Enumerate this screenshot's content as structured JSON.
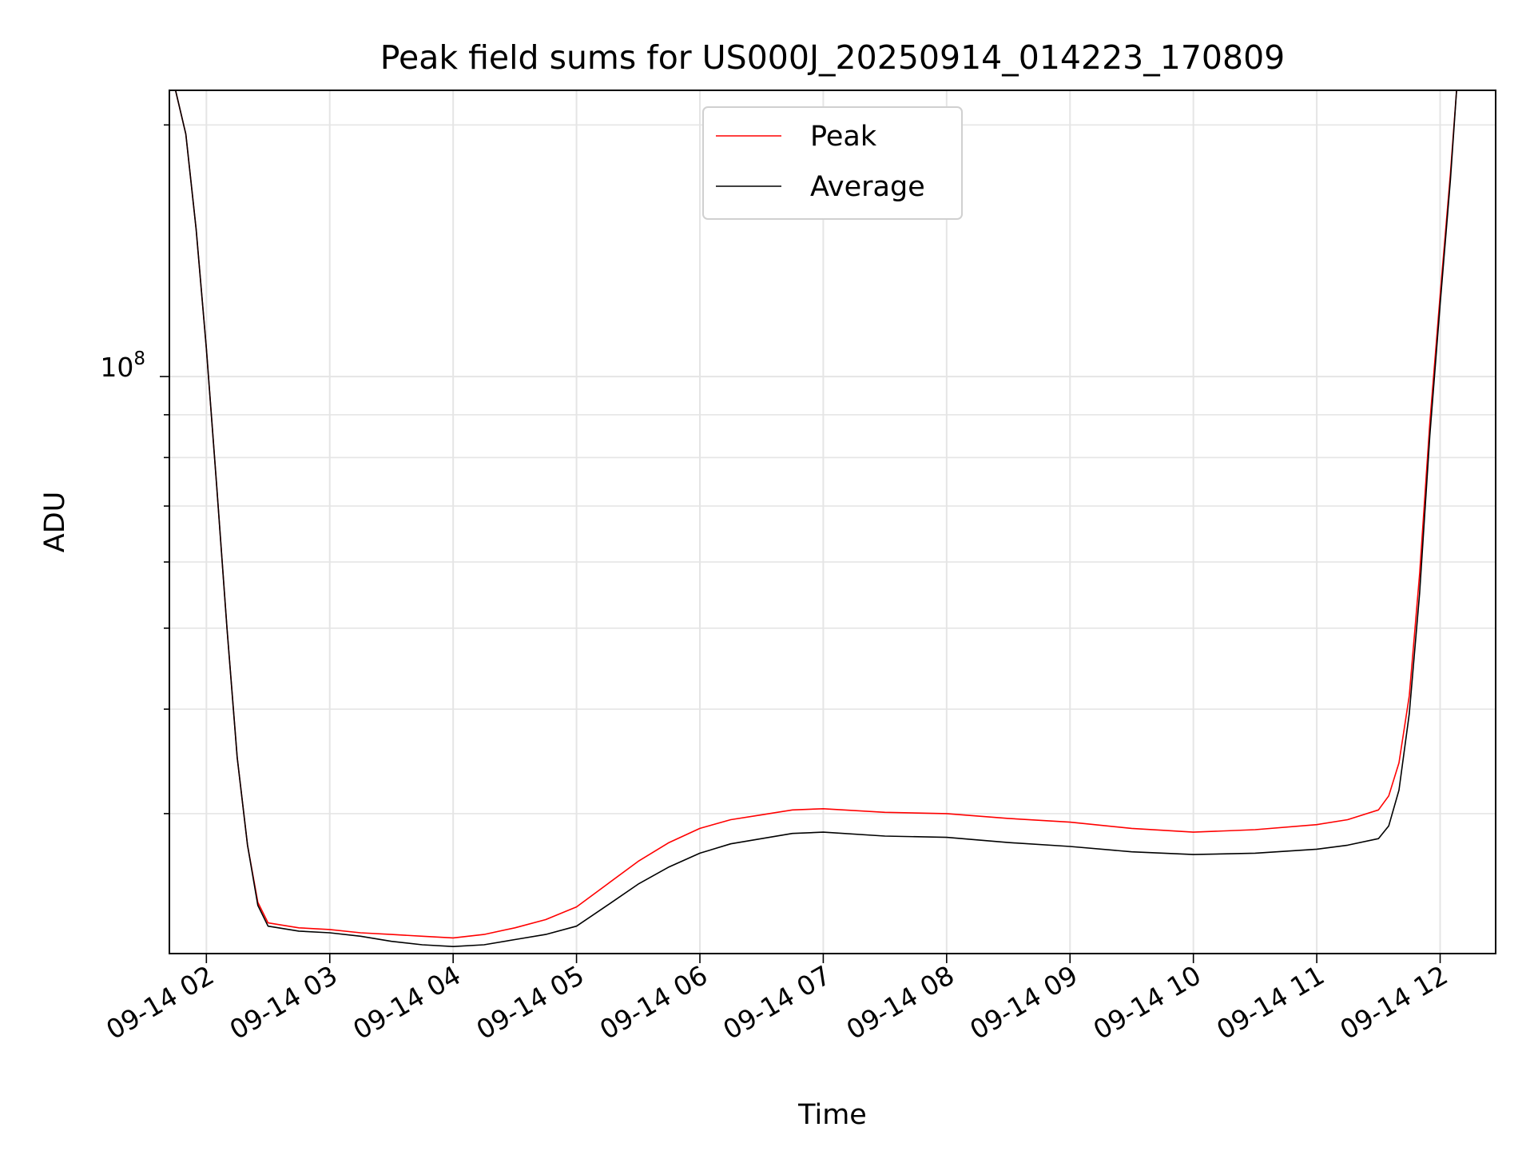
{
  "chart_data": {
    "type": "line",
    "title": "Peak field sums for US000J_20250914_014223_170809",
    "xlabel": "Time",
    "ylabel": "ADU",
    "yscale": "log",
    "grid": true,
    "grid_minor": true,
    "legend_position": "top-center",
    "x_tick_labels": [
      "09-14 02",
      "09-14 03",
      "09-14 04",
      "09-14 05",
      "09-14 06",
      "09-14 07",
      "09-14 08",
      "09-14 09",
      "09-14 10",
      "09-14 11",
      "09-14 12"
    ],
    "y_tick_major": {
      "value": 100000000,
      "base": "10",
      "exponent": "8"
    },
    "xlim": [
      "2025-09-14 01:42",
      "2025-09-14 12:27"
    ],
    "ylim": [
      20400000,
      220000000
    ],
    "series": [
      {
        "name": "Peak",
        "color": "#ff0000",
        "x": [
          "2025-09-14 01:45",
          "2025-09-14 01:50",
          "2025-09-14 01:55",
          "2025-09-14 02:00",
          "2025-09-14 02:05",
          "2025-09-14 02:10",
          "2025-09-14 02:15",
          "2025-09-14 02:20",
          "2025-09-14 02:25",
          "2025-09-14 02:30",
          "2025-09-14 02:45",
          "2025-09-14 03:00",
          "2025-09-14 03:15",
          "2025-09-14 03:30",
          "2025-09-14 03:45",
          "2025-09-14 04:00",
          "2025-09-14 04:15",
          "2025-09-14 04:30",
          "2025-09-14 04:45",
          "2025-09-14 05:00",
          "2025-09-14 05:15",
          "2025-09-14 05:30",
          "2025-09-14 05:45",
          "2025-09-14 06:00",
          "2025-09-14 06:15",
          "2025-09-14 06:30",
          "2025-09-14 06:45",
          "2025-09-14 07:00",
          "2025-09-14 07:30",
          "2025-09-14 08:00",
          "2025-09-14 08:30",
          "2025-09-14 09:00",
          "2025-09-14 09:30",
          "2025-09-14 10:00",
          "2025-09-14 10:30",
          "2025-09-14 11:00",
          "2025-09-14 11:15",
          "2025-09-14 11:30",
          "2025-09-14 11:35",
          "2025-09-14 11:40",
          "2025-09-14 11:45",
          "2025-09-14 11:50",
          "2025-09-14 11:55",
          "2025-09-14 12:00",
          "2025-09-14 12:05",
          "2025-09-14 12:08"
        ],
        "values": [
          220000000,
          195000000,
          150000000,
          108000000,
          74000000,
          50000000,
          35000000,
          27500000,
          23500000,
          22200000,
          21900000,
          21800000,
          21600000,
          21500000,
          21400000,
          21300000,
          21500000,
          21900000,
          22400000,
          23200000,
          24700000,
          26300000,
          27700000,
          28800000,
          29500000,
          29900000,
          30300000,
          30400000,
          30100000,
          30000000,
          29600000,
          29300000,
          28800000,
          28500000,
          28700000,
          29100000,
          29500000,
          30300000,
          31500000,
          34500000,
          41500000,
          58000000,
          88000000,
          125000000,
          175000000,
          220000000
        ]
      },
      {
        "name": "Average",
        "color": "#000000",
        "x": [
          "2025-09-14 01:45",
          "2025-09-14 01:50",
          "2025-09-14 01:55",
          "2025-09-14 02:00",
          "2025-09-14 02:05",
          "2025-09-14 02:10",
          "2025-09-14 02:15",
          "2025-09-14 02:20",
          "2025-09-14 02:25",
          "2025-09-14 02:30",
          "2025-09-14 02:45",
          "2025-09-14 03:00",
          "2025-09-14 03:15",
          "2025-09-14 03:30",
          "2025-09-14 03:45",
          "2025-09-14 04:00",
          "2025-09-14 04:15",
          "2025-09-14 04:30",
          "2025-09-14 04:45",
          "2025-09-14 05:00",
          "2025-09-14 05:15",
          "2025-09-14 05:30",
          "2025-09-14 05:45",
          "2025-09-14 06:00",
          "2025-09-14 06:15",
          "2025-09-14 06:30",
          "2025-09-14 06:45",
          "2025-09-14 07:00",
          "2025-09-14 07:30",
          "2025-09-14 08:00",
          "2025-09-14 08:30",
          "2025-09-14 09:00",
          "2025-09-14 09:30",
          "2025-09-14 10:00",
          "2025-09-14 10:30",
          "2025-09-14 11:00",
          "2025-09-14 11:15",
          "2025-09-14 11:30",
          "2025-09-14 11:35",
          "2025-09-14 11:40",
          "2025-09-14 11:45",
          "2025-09-14 11:50",
          "2025-09-14 11:55",
          "2025-09-14 12:00",
          "2025-09-14 12:05",
          "2025-09-14 12:08"
        ],
        "values": [
          220000000,
          195000000,
          150000000,
          108000000,
          74000000,
          50000000,
          35000000,
          27500000,
          23300000,
          22000000,
          21700000,
          21600000,
          21400000,
          21100000,
          20900000,
          20800000,
          20900000,
          21200000,
          21500000,
          22000000,
          23300000,
          24700000,
          25900000,
          26900000,
          27600000,
          28000000,
          28400000,
          28500000,
          28200000,
          28100000,
          27700000,
          27400000,
          27000000,
          26800000,
          26900000,
          27200000,
          27500000,
          28000000,
          29000000,
          32000000,
          39500000,
          55000000,
          85000000,
          122000000,
          172000000,
          220000000
        ]
      }
    ]
  }
}
